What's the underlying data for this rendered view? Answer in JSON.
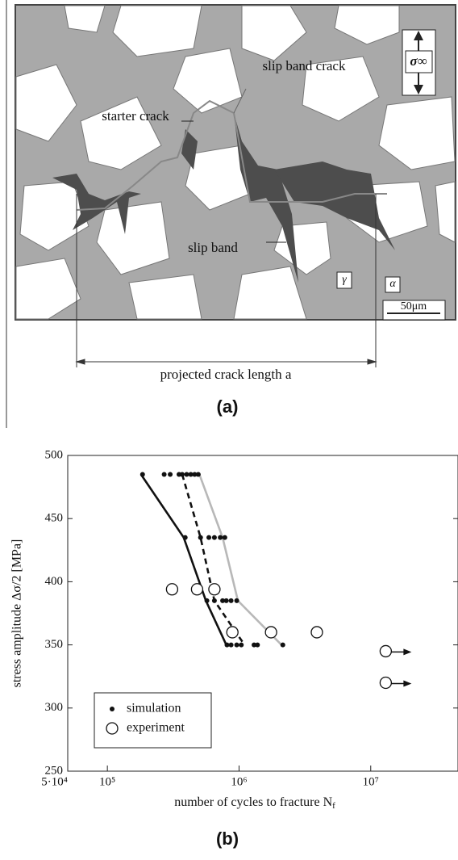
{
  "panel_a": {
    "labels": {
      "slip_band_crack": "slip band crack",
      "starter_crack": "starter crack",
      "slip_band": "slip band",
      "gamma": "γ",
      "alpha": "α",
      "scale": "50μm",
      "stress": "σ∞"
    },
    "dimension": "projected crack length a",
    "caption": "(a)"
  },
  "chart_data": {
    "type": "scatter",
    "caption": "(b)",
    "x_label": [
      "number of cycles to fracture N",
      "f"
    ],
    "y_label": "stress amplitude Δσ/2 [MPa]",
    "x_log": true,
    "xlim": [
      50000,
      46000000
    ],
    "xticks": [
      {
        "value": 50000,
        "label": "5·10⁴"
      },
      {
        "value": 100000,
        "label": "10⁵"
      },
      {
        "value": 1000000,
        "label": "10⁶"
      },
      {
        "value": 10000000,
        "label": "10⁷"
      }
    ],
    "ylim": [
      250,
      500
    ],
    "yticks": [
      250,
      300,
      350,
      400,
      450,
      500
    ],
    "legend": "lower left",
    "series": [
      {
        "name": "simulation",
        "marker": "dot",
        "color": "#111111",
        "x": [
          185000,
          270000,
          300000,
          350000,
          370000,
          400000,
          430000,
          460000,
          490000,
          390000,
          510000,
          590000,
          650000,
          720000,
          780000,
          570000,
          650000,
          750000,
          800000,
          870000,
          960000,
          810000,
          870000,
          960000,
          1040000,
          1300000,
          1380000,
          2150000
        ],
        "values": [
          485,
          485,
          485,
          485,
          485,
          485,
          485,
          485,
          485,
          435,
          435,
          435,
          435,
          435,
          435,
          385,
          385,
          385,
          385,
          385,
          385,
          350,
          350,
          350,
          350,
          350,
          350,
          350
        ]
      },
      {
        "name": "experiment",
        "marker": "circle",
        "color": "#111111",
        "x": [
          310000,
          480000,
          650000,
          890000,
          1750000,
          3900000,
          13000000,
          13000000
        ],
        "values": [
          394,
          394,
          394,
          360,
          360,
          360,
          345,
          320
        ],
        "runout": [
          false,
          false,
          false,
          false,
          false,
          false,
          true,
          true
        ]
      },
      {
        "marker": "line",
        "style": "solid",
        "color": "#111111",
        "x": [
          180000,
          380000,
          560000,
          800000
        ],
        "values": [
          485,
          435,
          385,
          350
        ]
      },
      {
        "marker": "line",
        "style": "dashed",
        "color": "#111111",
        "x": [
          370000,
          510000,
          650000,
          1100000
        ],
        "values": [
          485,
          435,
          385,
          350
        ]
      },
      {
        "marker": "line",
        "style": "solid",
        "color": "#b8b8b8",
        "x": [
          500000,
          750000,
          980000,
          2100000
        ],
        "values": [
          485,
          435,
          385,
          350
        ]
      }
    ]
  }
}
